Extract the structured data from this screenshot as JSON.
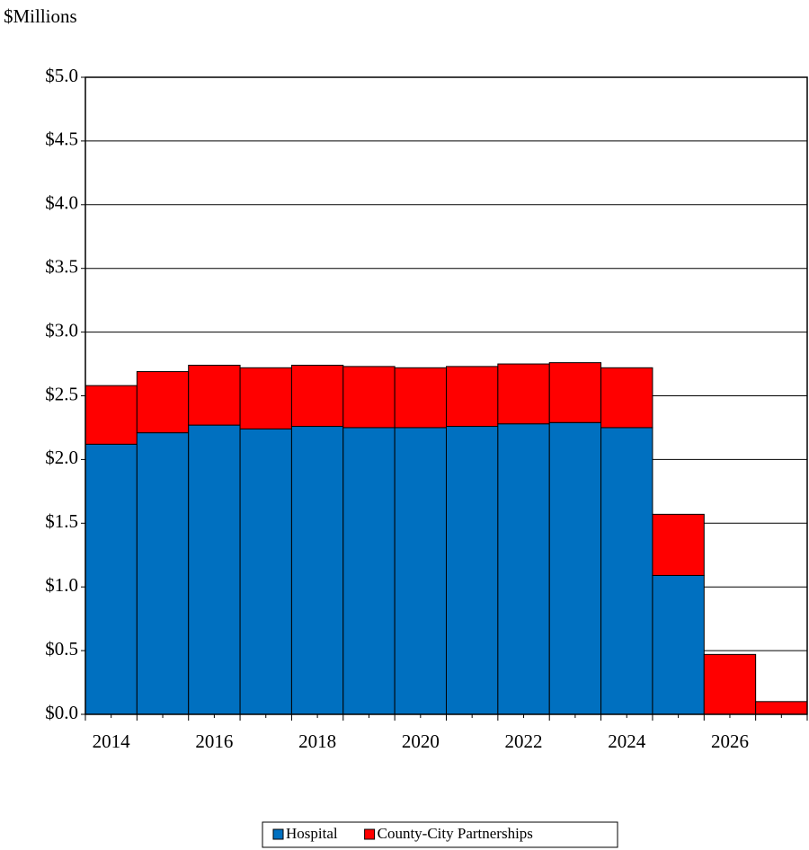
{
  "chart_data": {
    "type": "stacked_bar",
    "ylabel": "$Millions",
    "categories": [
      "2014",
      null,
      "2016",
      null,
      "2018",
      null,
      "2020",
      null,
      "2022",
      null,
      "2024",
      null,
      "2026",
      null
    ],
    "series": [
      {
        "name": "Hospital",
        "color": "#0070c0",
        "values": [
          2.12,
          2.21,
          2.27,
          2.24,
          2.26,
          2.25,
          2.25,
          2.26,
          2.28,
          2.29,
          2.25,
          1.09,
          0,
          0
        ]
      },
      {
        "name": "County-City Partnerships",
        "color": "#ff0000",
        "values": [
          0.46,
          0.48,
          0.47,
          0.48,
          0.48,
          0.48,
          0.47,
          0.47,
          0.47,
          0.47,
          0.47,
          0.48,
          0.47,
          0.1
        ]
      }
    ],
    "ylim": [
      0,
      5
    ],
    "yticks": [
      {
        "value": 0,
        "label": "$0.0"
      },
      {
        "value": 0.5,
        "label": "$0.5"
      },
      {
        "value": 1,
        "label": "$1.0"
      },
      {
        "value": 1.5,
        "label": "$1.5"
      },
      {
        "value": 2,
        "label": "$2.0"
      },
      {
        "value": 2.5,
        "label": "$2.5"
      },
      {
        "value": 3,
        "label": "$3.0"
      },
      {
        "value": 3.5,
        "label": "$3.5"
      },
      {
        "value": 4,
        "label": "$4.0"
      },
      {
        "value": 4.5,
        "label": "$4.5"
      },
      {
        "value": 5,
        "label": "$5.0"
      }
    ],
    "grid": true,
    "legend": "bottom"
  }
}
